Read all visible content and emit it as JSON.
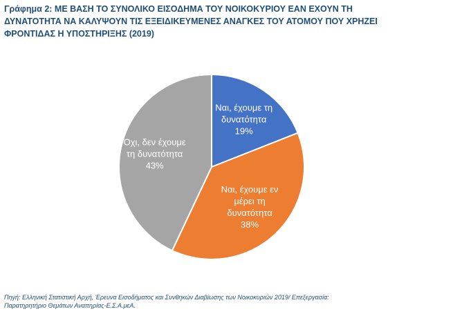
{
  "title": "Γράφημα 2: ΜΕ ΒΑΣΗ ΤΟ ΣΥΝΟΛΙΚΟ ΕΙΣΟΔΗΜΑ ΤΟΥ ΝΟΙΚΟΚΥΡΙΟΥ ΕΑΝ ΕΧΟΥΝ ΤΗ\nΔΥΝΑΤΟΤΗΤΑ ΝΑ ΚΑΛΥΨΟΥΝ ΤΙΣ ΕΞΕΙΔΙΚΕΥΜΕΝΕΣ ΑΝΑΓΚΕΣ ΤΟΥ ΑΤΟΜΟΥ ΠΟΥ ΧΡΗΖΕΙ\nΦΡΟΝΤΙΔΑΣ Η ΥΠΟΣΤΗΡΙΞΗΣ (2019)",
  "source": "Πηγή: Ελληνική Στατιστική Αρχή, Έρευνα Εισοδήματος και Συνθηκών Διαβίωσης των Νοικοκυριών 2019/ Επεξεργασία:\nΠαρατηρητήριο Θεμάτων Αναπηρίας-Ε.Σ.Α.μεΑ.",
  "chart_data": {
    "type": "pie",
    "title": "Γράφημα 2: ΜΕ ΒΑΣΗ ΤΟ ΣΥΝΟΛΙΚΟ ΕΙΣΟΔΗΜΑ ΤΟΥ ΝΟΙΚΟΚΥΡΙΟΥ ΕΑΝ ΕΧΟΥΝ ΤΗ ΔΥΝΑΤΟΤΗΤΑ ΝΑ ΚΑΛΥΨΟΥΝ ΤΙΣ ΕΞΕΙΔΙΚΕΥΜΕΝΕΣ ΑΝΑΓΚΕΣ ΤΟΥ ΑΤΟΜΟΥ ΠΟΥ ΧΡΗΖΕΙ ΦΡΟΝΤΙΔΑΣ Η ΥΠΟΣΤΗΡΙΞΗΣ (2019)",
    "slices": [
      {
        "label": [
          "Ναι, έχουμε τη",
          "δυνατότητα"
        ],
        "value": 19,
        "value_label": "19%",
        "color": "#4472c4"
      },
      {
        "label": [
          "Ναι, έχουμε εν",
          "μέρει τη",
          "δυνατότητα"
        ],
        "value": 38,
        "value_label": "38%",
        "color": "#ed7d31"
      },
      {
        "label": [
          "Όχι, δεν έχουμε",
          "τη δυνατότητα"
        ],
        "value": 43,
        "value_label": "43%",
        "color": "#a5a5a5"
      }
    ],
    "start_angle": "12 o'clock",
    "direction": "clockwise",
    "legend": "none",
    "data_labels": "inside"
  }
}
